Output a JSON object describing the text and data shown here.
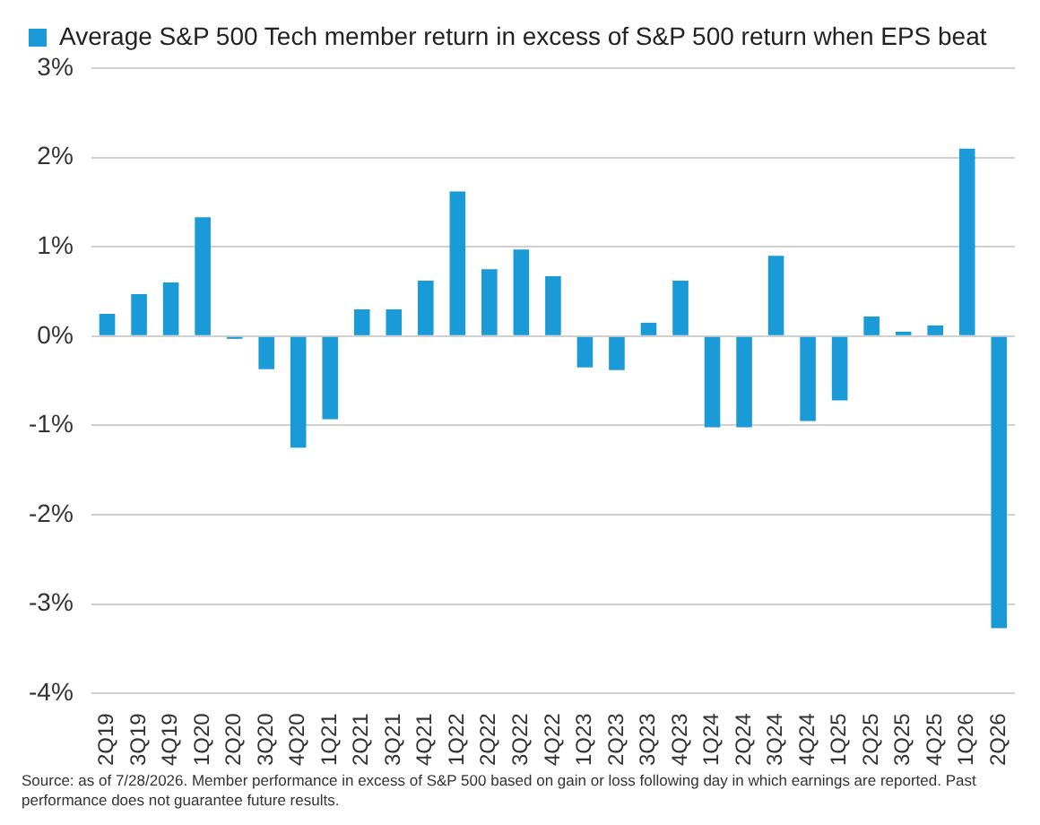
{
  "chart_data": {
    "type": "bar",
    "categories": [
      "2Q19",
      "3Q19",
      "4Q19",
      "1Q20",
      "2Q20",
      "3Q20",
      "4Q20",
      "1Q21",
      "2Q21",
      "3Q21",
      "4Q21",
      "1Q22",
      "2Q22",
      "3Q22",
      "4Q22",
      "1Q23",
      "2Q23",
      "3Q23",
      "4Q23",
      "1Q24",
      "2Q24",
      "3Q24",
      "4Q24",
      "1Q25",
      "2Q25",
      "3Q25",
      "4Q25",
      "1Q26",
      "2Q26"
    ],
    "series": [
      {
        "name": "Average S&P 500 Tech member return in excess of S&P 500 return when EPS beat",
        "color": "#1a9ad6",
        "values": [
          0.25,
          0.47,
          0.6,
          1.33,
          -0.03,
          -0.37,
          -1.25,
          -0.93,
          0.3,
          0.3,
          0.62,
          1.62,
          0.75,
          0.97,
          0.67,
          -0.35,
          -0.38,
          0.15,
          0.62,
          -1.02,
          -1.02,
          0.9,
          -0.95,
          -0.72,
          0.22,
          0.05,
          0.12,
          2.1,
          -3.27
        ]
      }
    ],
    "ylim": [
      -4,
      3
    ],
    "yticks": [
      {
        "value": -4,
        "label": "-4%"
      },
      {
        "value": -3,
        "label": "-3%"
      },
      {
        "value": -2,
        "label": "-2%"
      },
      {
        "value": -1,
        "label": "-1%"
      },
      {
        "value": 0,
        "label": "0%"
      },
      {
        "value": 1,
        "label": "1%"
      },
      {
        "value": 2,
        "label": "2%"
      },
      {
        "value": 3,
        "label": "3%"
      }
    ],
    "grid": "y",
    "legend": "top left",
    "annotations": [
      "Source: as of 7/28/2026. Member performance in excess of S&P 500 based on gain or loss following day in which earnings are reported. Past performance does not guarantee future results."
    ]
  }
}
